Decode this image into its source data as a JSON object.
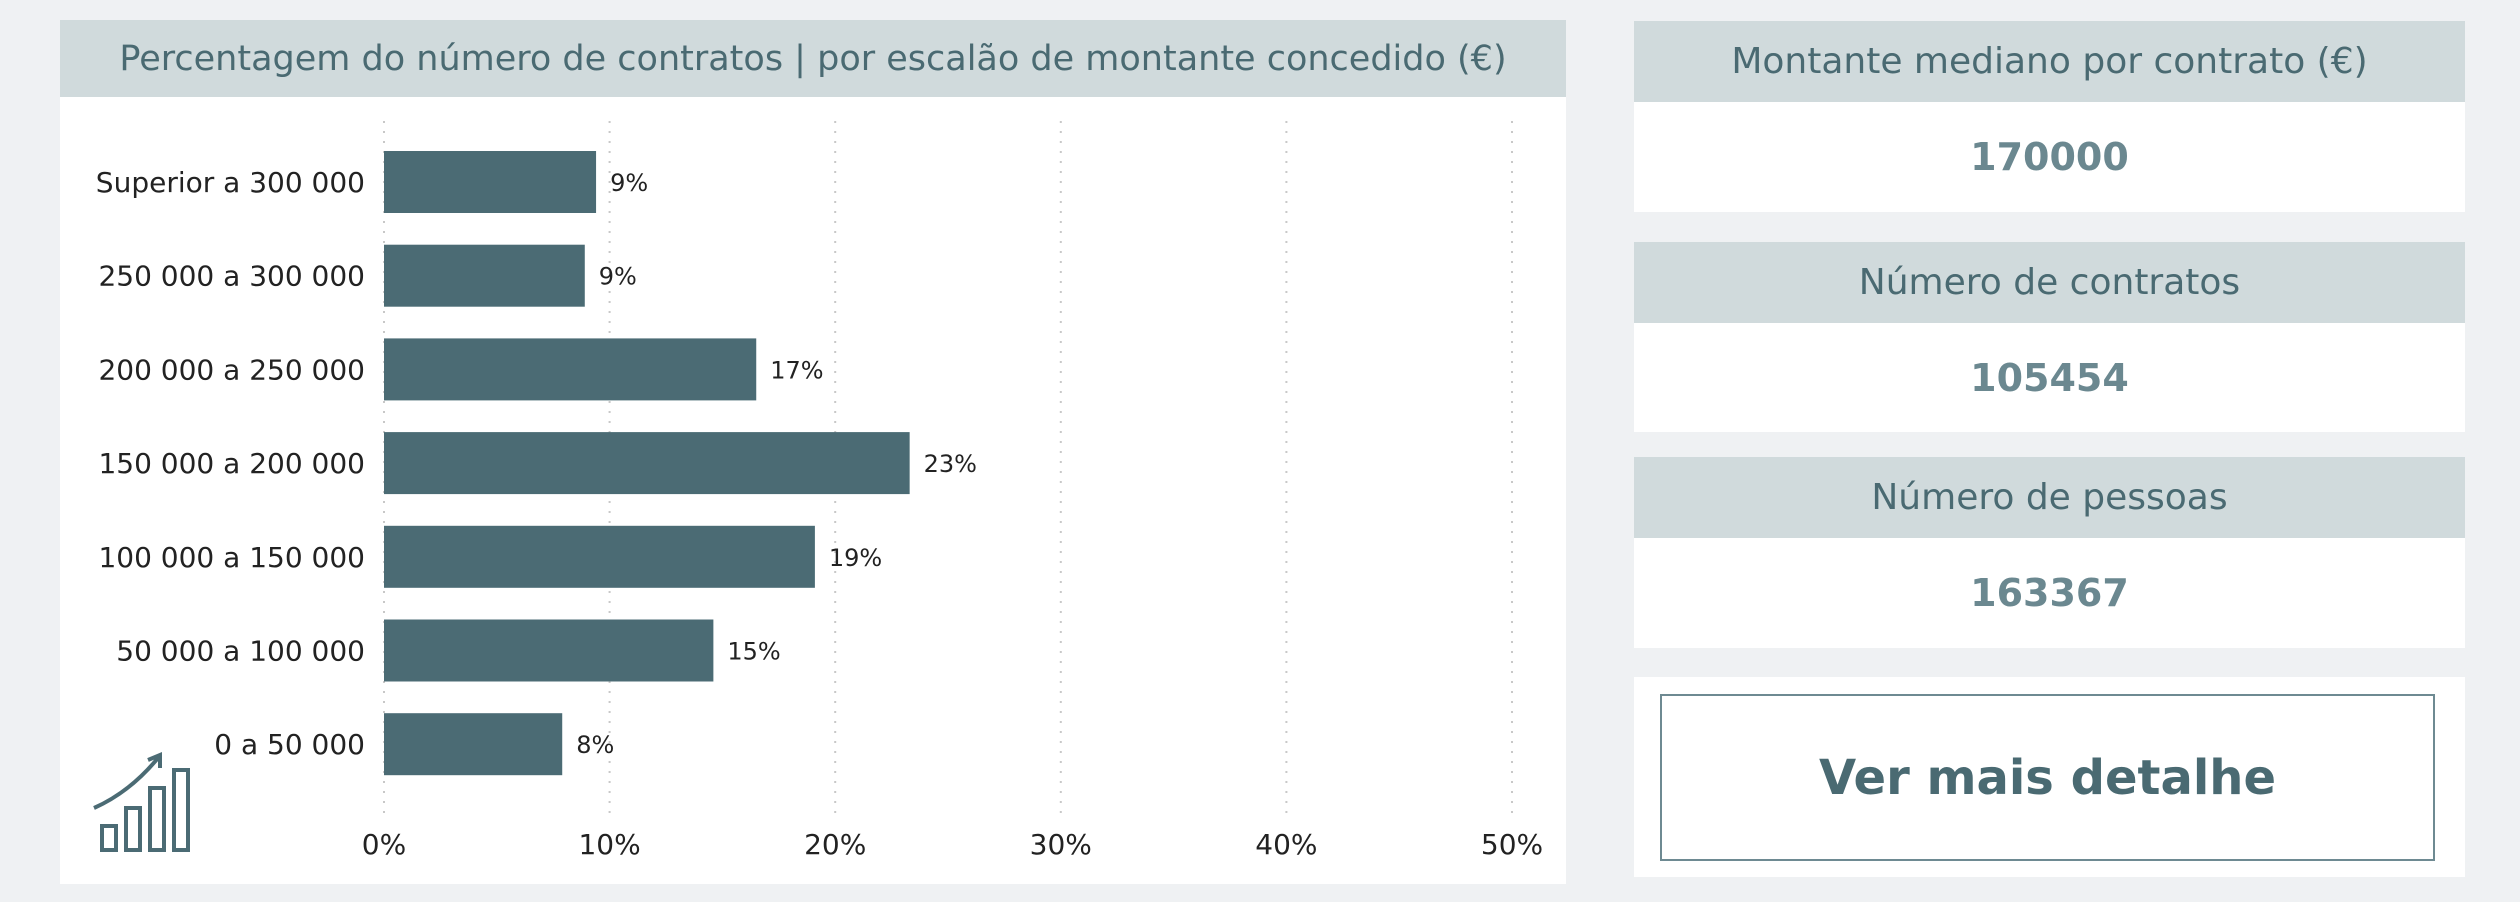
{
  "chart_data": {
    "type": "bar",
    "orientation": "horizontal",
    "title": "Percentagem do número de contratos | por escalão de montante concedido (€)",
    "categories": [
      "Superior a 300 000",
      "250 000 a 300 000",
      "200 000 a 250 000",
      "150 000 a 200 000",
      "100 000 a 150 000",
      "50 000 a 100 000",
      "0 a 50 000"
    ],
    "values": [
      9.4,
      8.9,
      16.5,
      23.3,
      19.1,
      14.6,
      7.9
    ],
    "data_labels": [
      "9%",
      "9%",
      "17%",
      "23%",
      "19%",
      "15%",
      "8%"
    ],
    "xlim": [
      0,
      50
    ],
    "x_ticks": [
      "0%",
      "10%",
      "20%",
      "30%",
      "40%",
      "50%"
    ],
    "grid": "vertical dotted",
    "bar_color": "#4b6b74",
    "icon": "chart-growth-icon"
  },
  "kpis": [
    {
      "label": "Montante mediano por contrato (€)",
      "value": "170000"
    },
    {
      "label": "Número de contratos",
      "value": "105454"
    },
    {
      "label": "Número de pessoas",
      "value": "163367"
    }
  ],
  "button": {
    "label": "Ver mais detalhe"
  },
  "colors": {
    "background": "#eff1f3",
    "header": "#d0dadc",
    "title_text": "#4a6a72",
    "value_text": "#6b8890"
  }
}
